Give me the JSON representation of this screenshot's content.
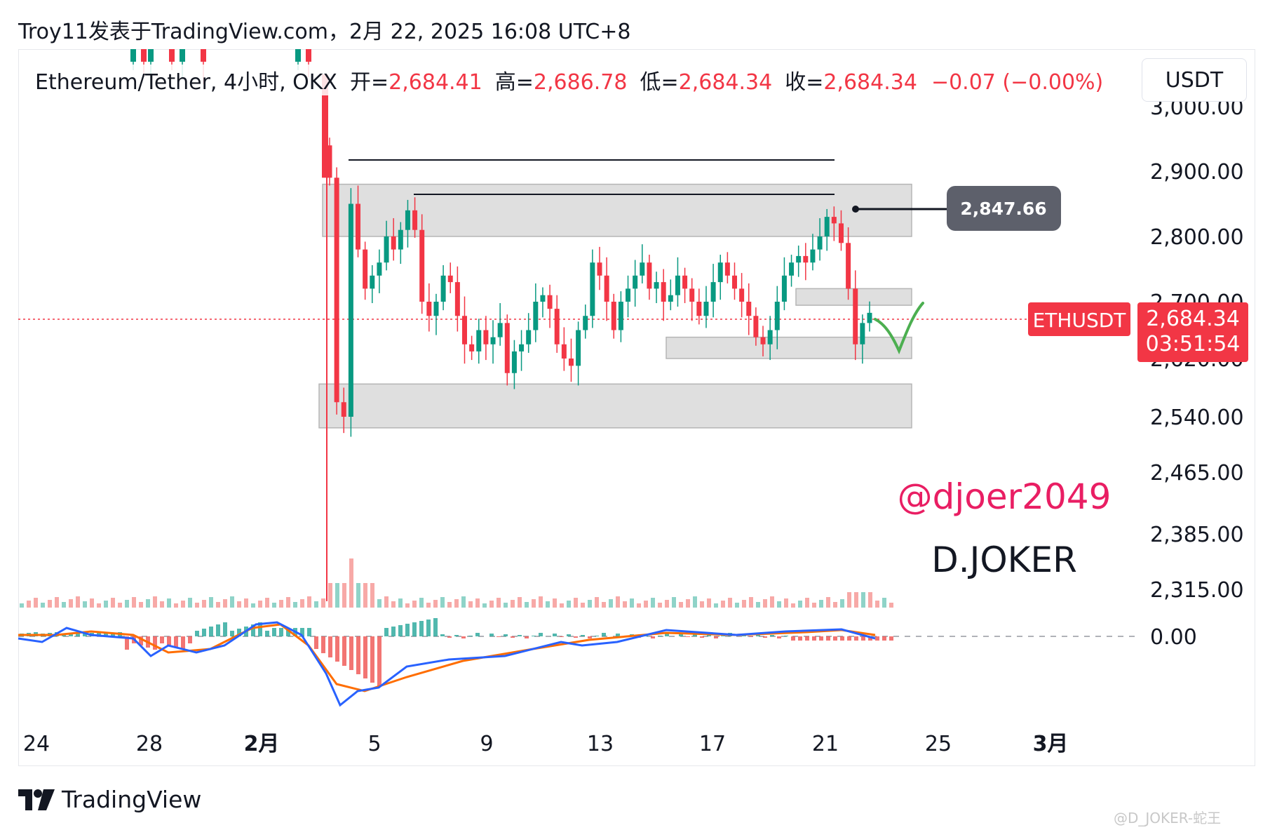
{
  "header": {
    "text": "Troy11发表于TradingView.com，2月 22, 2025 16:08 UTC+8"
  },
  "legend": {
    "symbol": "Ethereum/Tether, 4小时, OKX",
    "open_label": "开=",
    "open": "2,684.41",
    "high_label": "高=",
    "high": "2,686.78",
    "low_label": "低=",
    "low": "2,684.34",
    "close_label": "收=",
    "close": "2,684.34",
    "change": "−0.07 (−0.00%)"
  },
  "unit_button": "USDT",
  "price_axis": {
    "ticks": [
      "3,000.00",
      "2,900.00",
      "2,800.00",
      "2,700.00",
      "2,620.00",
      "2,540.00",
      "2,465.00",
      "2,385.00",
      "2,315.00"
    ],
    "macd_zero": "0.00"
  },
  "time_axis": {
    "ticks": [
      "24",
      "28",
      "2月",
      "5",
      "9",
      "13",
      "17",
      "21",
      "25",
      "3月"
    ]
  },
  "annotations": {
    "peak_label": "2,847.66",
    "symbol_tag": "ETHUSDT",
    "price_tag": "2,684.34",
    "countdown": "03:51:54",
    "handle": "@djoer2049",
    "brand": "D.JOKER"
  },
  "footer": {
    "brand": "TradingView",
    "watermark": "@D_JOKER-蛇王"
  },
  "colors": {
    "up": "#089981",
    "down": "#f23645",
    "macd_line": "#2962ff",
    "signal_line": "#ff6d00",
    "zone_fill": "#d9d9d9",
    "handle": "#e91e63",
    "check_mark": "#4caf50"
  },
  "chart_data": {
    "type": "candlestick",
    "pair": "ETH/USDT",
    "interval": "4小时",
    "exchange": "OKX",
    "current_price": 2684.34,
    "resistance_high": 2847.66,
    "zones": [
      {
        "low": 2800,
        "high": 2880
      },
      {
        "low": 2695,
        "high": 2720
      },
      {
        "low": 2620,
        "high": 2650
      },
      {
        "low": 2525,
        "high": 2585
      }
    ],
    "x": [
      "2月3",
      "2月3",
      "2月3",
      "2月4",
      "2月4",
      "2月4",
      "2月4",
      "2月5",
      "2月5",
      "2月5",
      "2月5",
      "2月6",
      "2月6",
      "2月6",
      "2月6",
      "2月7",
      "2月7",
      "2月7",
      "2月7",
      "2月8",
      "2月8",
      "2月8",
      "2月8",
      "2月9",
      "2月9",
      "2月9",
      "2月9",
      "2月10",
      "2月10",
      "2月10",
      "2月10",
      "2月11",
      "2月11",
      "2月11",
      "2月11",
      "2月12",
      "2月12",
      "2月12",
      "2月12",
      "2月13",
      "2月13",
      "2月13",
      "2月13",
      "2月14",
      "2月14",
      "2月14",
      "2月14",
      "2月15",
      "2月15",
      "2月15",
      "2月15",
      "2月16",
      "2月16",
      "2月16",
      "2月16",
      "2月17",
      "2月17",
      "2月17",
      "2月17",
      "2月18",
      "2月18",
      "2月18",
      "2月18",
      "2月19",
      "2月19",
      "2月19",
      "2月19",
      "2月20",
      "2月20",
      "2月20",
      "2月20",
      "2月21",
      "2月21",
      "2月21",
      "2月21",
      "2月22",
      "2月22"
    ],
    "close": [
      2890,
      2560,
      2540,
      2850,
      2780,
      2720,
      2740,
      2760,
      2800,
      2780,
      2810,
      2840,
      2810,
      2700,
      2680,
      2700,
      2740,
      2730,
      2680,
      2640,
      2630,
      2660,
      2640,
      2650,
      2670,
      2600,
      2630,
      2640,
      2660,
      2700,
      2710,
      2690,
      2640,
      2620,
      2610,
      2660,
      2680,
      2760,
      2740,
      2700,
      2660,
      2700,
      2720,
      2740,
      2760,
      2720,
      2730,
      2700,
      2710,
      2740,
      2720,
      2700,
      2680,
      2700,
      2730,
      2760,
      2740,
      2720,
      2700,
      2680,
      2650,
      2640,
      2660,
      2700,
      2740,
      2760,
      2770,
      2760,
      2780,
      2800,
      2830,
      2820,
      2790,
      2720,
      2640,
      2670,
      2684.34
    ]
  }
}
